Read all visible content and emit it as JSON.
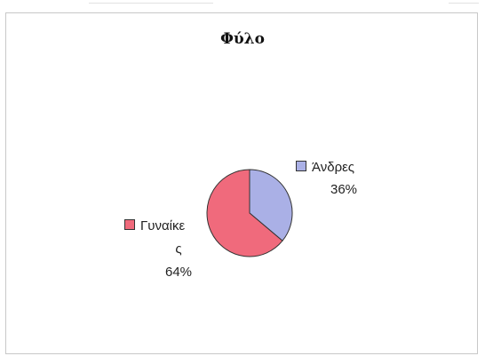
{
  "chart_data": {
    "type": "pie",
    "title": "Φύλο",
    "slices": [
      {
        "label": "Άνδρες",
        "value": 36,
        "percent_label": "36%",
        "color": "#aab0e6"
      },
      {
        "label": "Γυναίκες",
        "value": 64,
        "percent_label": "64%",
        "color": "#f06a7c"
      }
    ],
    "legend": "labels-beside-slices"
  }
}
